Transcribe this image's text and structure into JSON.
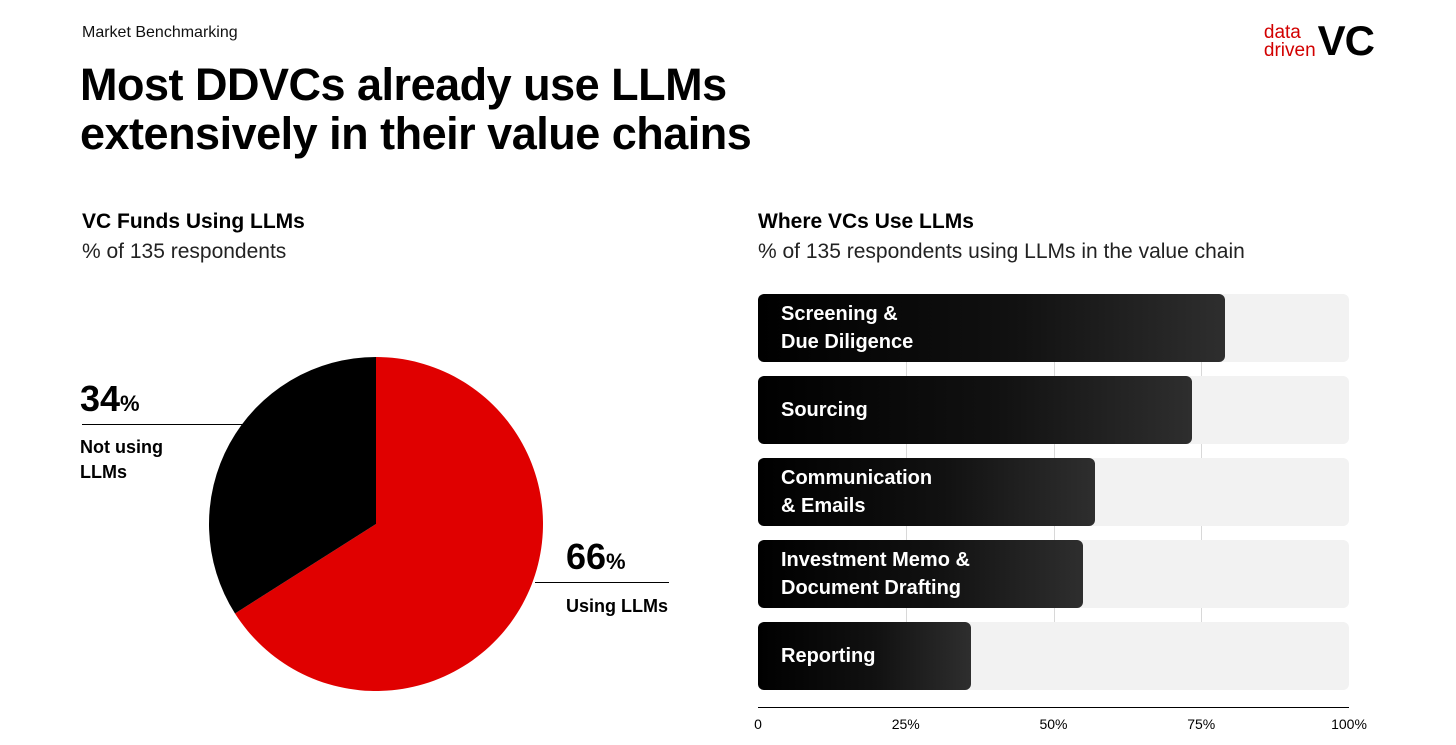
{
  "header": {
    "kicker": "Market Benchmarking",
    "headline": "Most DDVCs already use LLMs\nextensively in their value chains"
  },
  "logo": {
    "line1": "data",
    "line2": "driven",
    "mark": "VC",
    "accent_color": "#d20000"
  },
  "chart_data": [
    {
      "type": "pie",
      "title": "VC Funds Using LLMs",
      "subtitle": "% of 135 respondents",
      "slices": [
        {
          "label": "Using LLMs",
          "value": 66,
          "display": "66",
          "color": "#e00000"
        },
        {
          "label": "Not using\nLLMs",
          "value": 34,
          "display": "34",
          "color": "#000000"
        }
      ],
      "percent_sign": "%"
    },
    {
      "type": "bar",
      "orientation": "horizontal",
      "title": "Where VCs Use LLMs",
      "subtitle": "% of 135 respondents using LLMs in the value chain",
      "categories": [
        "Screening &\nDue Diligence",
        "Sourcing",
        "Communication\n& Emails",
        "Investment Memo &\nDocument Drafting",
        "Reporting"
      ],
      "values": [
        79,
        73.5,
        57,
        55,
        36
      ],
      "xlim": [
        0,
        100
      ],
      "ticks": [
        0,
        25,
        50,
        75,
        100
      ],
      "tick_labels": [
        "0",
        "25%",
        "50%",
        "75%",
        "100%"
      ],
      "grid": true,
      "bar_color": "#000000",
      "track_color": "#f2f2f2"
    }
  ]
}
